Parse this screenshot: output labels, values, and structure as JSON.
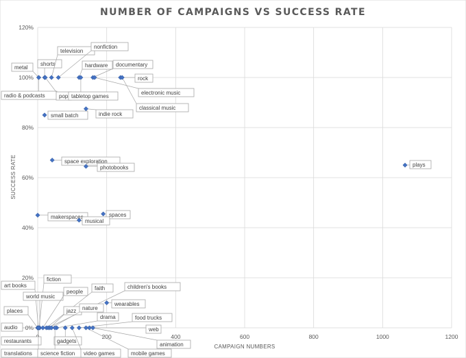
{
  "chart_data": {
    "type": "scatter",
    "title": "NUMBER OF CAMPAIGNS VS SUCCESS RATE",
    "xlabel": "CAMPAIGN NUMBERS",
    "ylabel": "SUCCESS RATE",
    "xlim": [
      0,
      1200
    ],
    "ylim": [
      0,
      1.2
    ],
    "x_ticks": [
      0,
      200,
      400,
      600,
      800,
      1000,
      1200
    ],
    "y_ticks": [
      0,
      0.2,
      0.4,
      0.6,
      0.8,
      1.0,
      1.2
    ],
    "x_tick_labels": [
      "0",
      "200",
      "400",
      "600",
      "800",
      "1000",
      "1200"
    ],
    "y_tick_labels": [
      "0%",
      "20%",
      "40%",
      "60%",
      "80%",
      "100%",
      "120%"
    ],
    "grid": true,
    "legend": "none",
    "marker_color": "#4472c4",
    "points": [
      {
        "label": "metal",
        "x": 3,
        "y": 1.0
      },
      {
        "label": "radio & podcasts",
        "x": 3,
        "y": 1.0
      },
      {
        "label": "shorts",
        "x": 20,
        "y": 1.0
      },
      {
        "label": "pop",
        "x": 22,
        "y": 1.0
      },
      {
        "label": "television",
        "x": 40,
        "y": 1.0
      },
      {
        "label": "nonfiction",
        "x": 60,
        "y": 1.0
      },
      {
        "label": "hardware",
        "x": 120,
        "y": 1.0
      },
      {
        "label": "tabletop games",
        "x": 125,
        "y": 1.0
      },
      {
        "label": "documentary",
        "x": 160,
        "y": 1.0
      },
      {
        "label": "electronic music",
        "x": 165,
        "y": 1.0
      },
      {
        "label": "rock",
        "x": 240,
        "y": 1.0
      },
      {
        "label": "classical music",
        "x": 245,
        "y": 1.0
      },
      {
        "label": "indie rock",
        "x": 140,
        "y": 0.875
      },
      {
        "label": "small batch",
        "x": 20,
        "y": 0.85
      },
      {
        "label": "space exploration",
        "x": 42,
        "y": 0.67
      },
      {
        "label": "photobooks",
        "x": 140,
        "y": 0.645
      },
      {
        "label": "plays",
        "x": 1065,
        "y": 0.65
      },
      {
        "label": "makerspaces",
        "x": 0,
        "y": 0.45
      },
      {
        "label": "spaces",
        "x": 190,
        "y": 0.455
      },
      {
        "label": "musical",
        "x": 120,
        "y": 0.43
      },
      {
        "label": "art books",
        "x": 2,
        "y": 0.0
      },
      {
        "label": "fiction",
        "x": 4,
        "y": 0.0
      },
      {
        "label": "world music",
        "x": 6,
        "y": 0.0
      },
      {
        "label": "people",
        "x": 15,
        "y": 0.0
      },
      {
        "label": "faith",
        "x": 25,
        "y": 0.0
      },
      {
        "label": "children's books",
        "x": 30,
        "y": 0.0
      },
      {
        "label": "wearables",
        "x": 200,
        "y": 0.1
      },
      {
        "label": "places",
        "x": 0,
        "y": 0.0
      },
      {
        "label": "jazz",
        "x": 35,
        "y": 0.0
      },
      {
        "label": "nature",
        "x": 40,
        "y": 0.0
      },
      {
        "label": "drama",
        "x": 55,
        "y": 0.0
      },
      {
        "label": "food trucks",
        "x": 120,
        "y": 0.0
      },
      {
        "label": "audio",
        "x": 0,
        "y": 0.0
      },
      {
        "label": "web",
        "x": 150,
        "y": 0.0
      },
      {
        "label": "restaurants",
        "x": 1,
        "y": 0.0
      },
      {
        "label": "animation",
        "x": 160,
        "y": 0.0
      },
      {
        "label": "gadgets",
        "x": 80,
        "y": 0.0
      },
      {
        "label": "translations",
        "x": 2,
        "y": 0.0
      },
      {
        "label": "science fiction",
        "x": 50,
        "y": 0.0
      },
      {
        "label": "video games",
        "x": 100,
        "y": 0.0
      },
      {
        "label": "mobile games",
        "x": 140,
        "y": 0.0
      }
    ]
  }
}
